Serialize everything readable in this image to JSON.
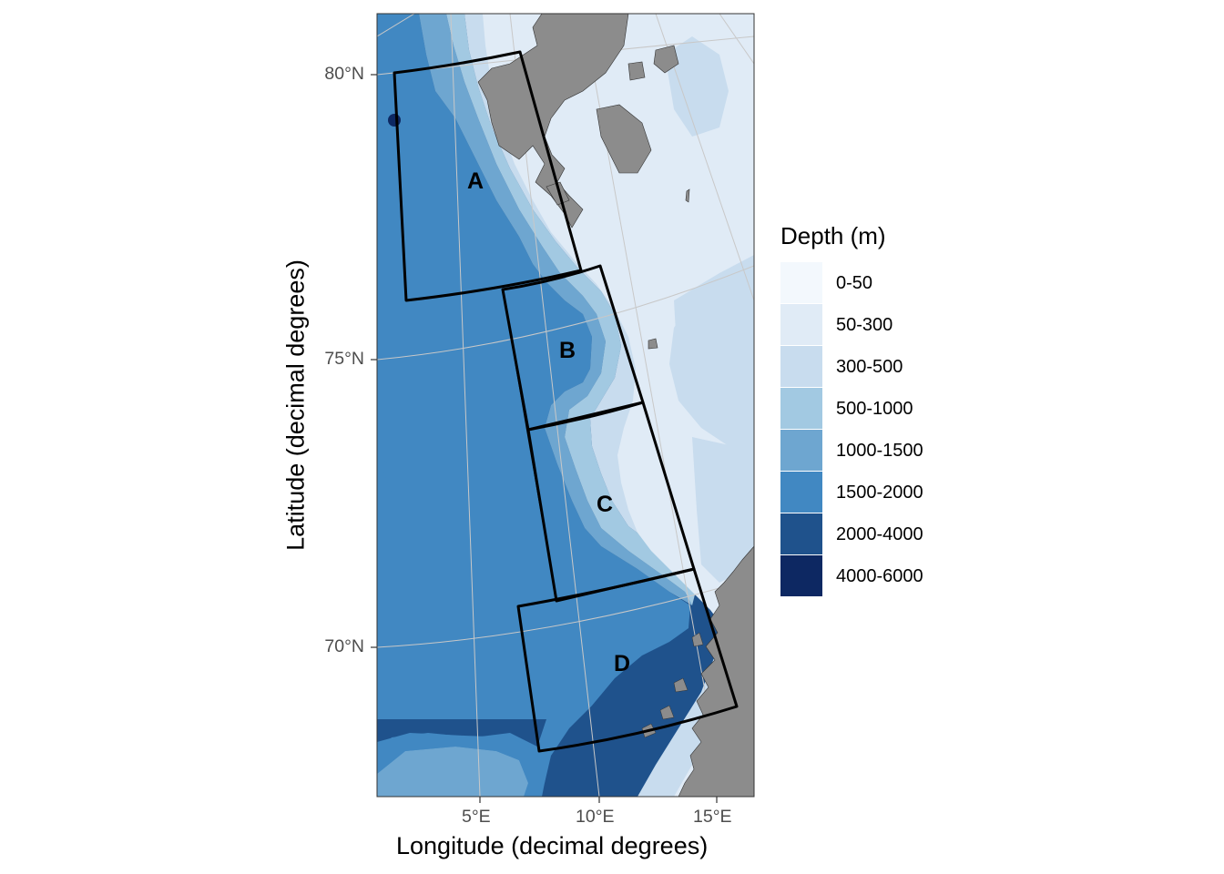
{
  "axes": {
    "xlabel": "Longitude (decimal degrees)",
    "ylabel": "Latitude (decimal degrees)",
    "x_ticks": [
      "5°E",
      "10°E",
      "15°E"
    ],
    "y_ticks": [
      "80°N",
      "75°N",
      "70°N"
    ]
  },
  "legend": {
    "title": "Depth (m)",
    "items": [
      {
        "label": "0-50",
        "color": "#f3f8fd"
      },
      {
        "label": "50-300",
        "color": "#e0ebf6"
      },
      {
        "label": "300-500",
        "color": "#c8dcee"
      },
      {
        "label": "500-1000",
        "color": "#a2c9e2"
      },
      {
        "label": "1000-1500",
        "color": "#6ea6d0"
      },
      {
        "label": "1500-2000",
        "color": "#4188c2"
      },
      {
        "label": "2000-4000",
        "color": "#1f528c"
      },
      {
        "label": "4000-6000",
        "color": "#0d2862"
      }
    ]
  },
  "regions": [
    {
      "label": "A"
    },
    {
      "label": "B"
    },
    {
      "label": "C"
    },
    {
      "label": "D"
    }
  ],
  "colors": {
    "land": "#8c8c8c",
    "region_outline": "#000000",
    "graticule": "#c8c8c8"
  }
}
